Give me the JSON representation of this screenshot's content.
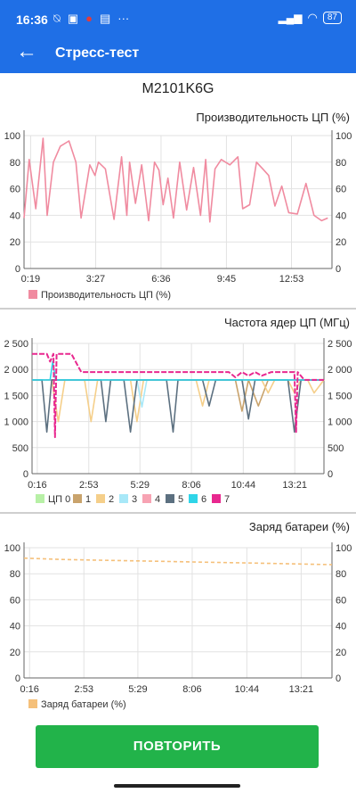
{
  "status": {
    "time": "16:36",
    "battery": "87"
  },
  "app_bar": {
    "title": "Стресс-тест"
  },
  "device_model": "M2101K6G",
  "actions": {
    "repeat_label": "ПОВТОРИТЬ"
  },
  "chart_data": [
    {
      "type": "line",
      "title": "Производительность ЦП (%)",
      "xlabel": "",
      "ylabel": "",
      "x_tick_labels": [
        "0:19",
        "3:27",
        "6:36",
        "9:45",
        "12:53"
      ],
      "x_ticks_s": [
        19,
        207,
        396,
        585,
        773
      ],
      "x_range_s": [
        0,
        890
      ],
      "y_ticks": [
        0,
        20,
        40,
        60,
        80,
        100
      ],
      "ylim": [
        0,
        100
      ],
      "grid": true,
      "legend": "bottom-left",
      "series": [
        {
          "name": "Производительность ЦП (%)",
          "color": "#f08ba0",
          "x": [
            0,
            15,
            34,
            55,
            67,
            85,
            105,
            130,
            150,
            165,
            190,
            205,
            215,
            235,
            260,
            282,
            297,
            305,
            322,
            340,
            360,
            377,
            390,
            402,
            416,
            432,
            450,
            470,
            490,
            510,
            525,
            537,
            552,
            570,
            595,
            618,
            632,
            652,
            672,
            690,
            707,
            725,
            745,
            765,
            790,
            815,
            838,
            860,
            878
          ],
          "y": [
            38,
            82,
            45,
            98,
            40,
            80,
            92,
            96,
            80,
            38,
            78,
            70,
            80,
            75,
            37,
            84,
            40,
            80,
            49,
            78,
            36,
            80,
            74,
            48,
            68,
            38,
            80,
            44,
            76,
            40,
            82,
            35,
            75,
            82,
            78,
            84,
            45,
            48,
            80,
            75,
            70,
            47,
            62,
            42,
            41,
            64,
            40,
            36,
            38
          ]
        }
      ]
    },
    {
      "type": "line",
      "title": "Частота ядер ЦП (МГц)",
      "xlabel": "",
      "ylabel": "",
      "x_tick_labels": [
        "0:16",
        "2:53",
        "5:29",
        "8:06",
        "10:44",
        "13:21"
      ],
      "x_ticks_s": [
        16,
        173,
        329,
        486,
        644,
        801
      ],
      "x_range_s": [
        0,
        890
      ],
      "y_ticks": [
        0,
        500,
        1000,
        1500,
        2000,
        2500
      ],
      "ylim": [
        0,
        2500
      ],
      "grid": true,
      "legend": "bottom",
      "series": [
        {
          "name": "ЦП 0",
          "color": "#b7f0a6",
          "x": [
            0,
            890
          ],
          "y": [
            1800,
            1800
          ]
        },
        {
          "name": "1",
          "color": "#c9a36c",
          "x": [
            0,
            620,
            640,
            660,
            690,
            720,
            890
          ],
          "y": [
            1800,
            1800,
            1200,
            1800,
            1300,
            1800,
            1800
          ]
        },
        {
          "name": "2",
          "color": "#f5cf8a",
          "x": [
            0,
            60,
            80,
            100,
            160,
            180,
            200,
            300,
            320,
            340,
            500,
            520,
            540,
            700,
            720,
            740,
            780,
            800,
            820,
            840,
            860,
            890
          ],
          "y": [
            1800,
            1800,
            1000,
            1800,
            1800,
            1000,
            1800,
            1800,
            1000,
            1800,
            1800,
            1300,
            1800,
            1800,
            1550,
            1800,
            1800,
            1550,
            1800,
            1800,
            1550,
            1800
          ]
        },
        {
          "name": "3",
          "color": "#a8e8f8",
          "x": [
            0,
            320,
            335,
            350,
            890
          ],
          "y": [
            1800,
            1800,
            1280,
            1800,
            1800
          ]
        },
        {
          "name": "4",
          "color": "#f7a3b3",
          "x": [
            0,
            890
          ],
          "y": [
            1800,
            1800
          ]
        },
        {
          "name": "5",
          "color": "#5c7080",
          "x": [
            0,
            30,
            45,
            60,
            210,
            225,
            240,
            280,
            300,
            320,
            410,
            430,
            445,
            520,
            540,
            560,
            640,
            660,
            680,
            780,
            800,
            820,
            890
          ],
          "y": [
            1800,
            1800,
            800,
            1800,
            1800,
            1000,
            1800,
            1800,
            800,
            1800,
            1800,
            800,
            1800,
            1800,
            1300,
            1800,
            1800,
            1050,
            1800,
            1800,
            800,
            1800,
            1800
          ]
        },
        {
          "name": "6",
          "color": "#2fd5e8",
          "x": [
            0,
            55,
            63,
            72,
            890
          ],
          "y": [
            1800,
            1800,
            2150,
            1800,
            1800
          ]
        },
        {
          "name": "7",
          "color": "#e8288f",
          "x": [
            0,
            45,
            55,
            65,
            70,
            75,
            90,
            120,
            150,
            200,
            600,
            620,
            640,
            660,
            680,
            700,
            730,
            760,
            800,
            805,
            810,
            830,
            860,
            890
          ],
          "y": [
            2300,
            2300,
            2150,
            2300,
            700,
            2300,
            2300,
            2300,
            1950,
            1950,
            1950,
            1850,
            1950,
            1880,
            1950,
            1880,
            1950,
            1950,
            1950,
            800,
            1950,
            1800,
            1800,
            1800
          ]
        }
      ]
    },
    {
      "type": "line",
      "title": "Заряд батареи (%)",
      "xlabel": "",
      "ylabel": "",
      "x_tick_labels": [
        "0:16",
        "2:53",
        "5:29",
        "8:06",
        "10:44",
        "13:21"
      ],
      "x_ticks_s": [
        16,
        173,
        329,
        486,
        644,
        801
      ],
      "x_range_s": [
        0,
        890
      ],
      "y_ticks": [
        0,
        20,
        40,
        60,
        80,
        100
      ],
      "ylim": [
        0,
        100
      ],
      "grid": true,
      "legend": "bottom-left",
      "series": [
        {
          "name": "Заряд батареи (%)",
          "color": "#f5c07a",
          "x": [
            0,
            100,
            200,
            300,
            400,
            500,
            600,
            700,
            800,
            890
          ],
          "y": [
            92,
            91,
            90.5,
            90,
            89.5,
            89,
            88.5,
            88,
            87.5,
            87
          ]
        }
      ]
    }
  ]
}
